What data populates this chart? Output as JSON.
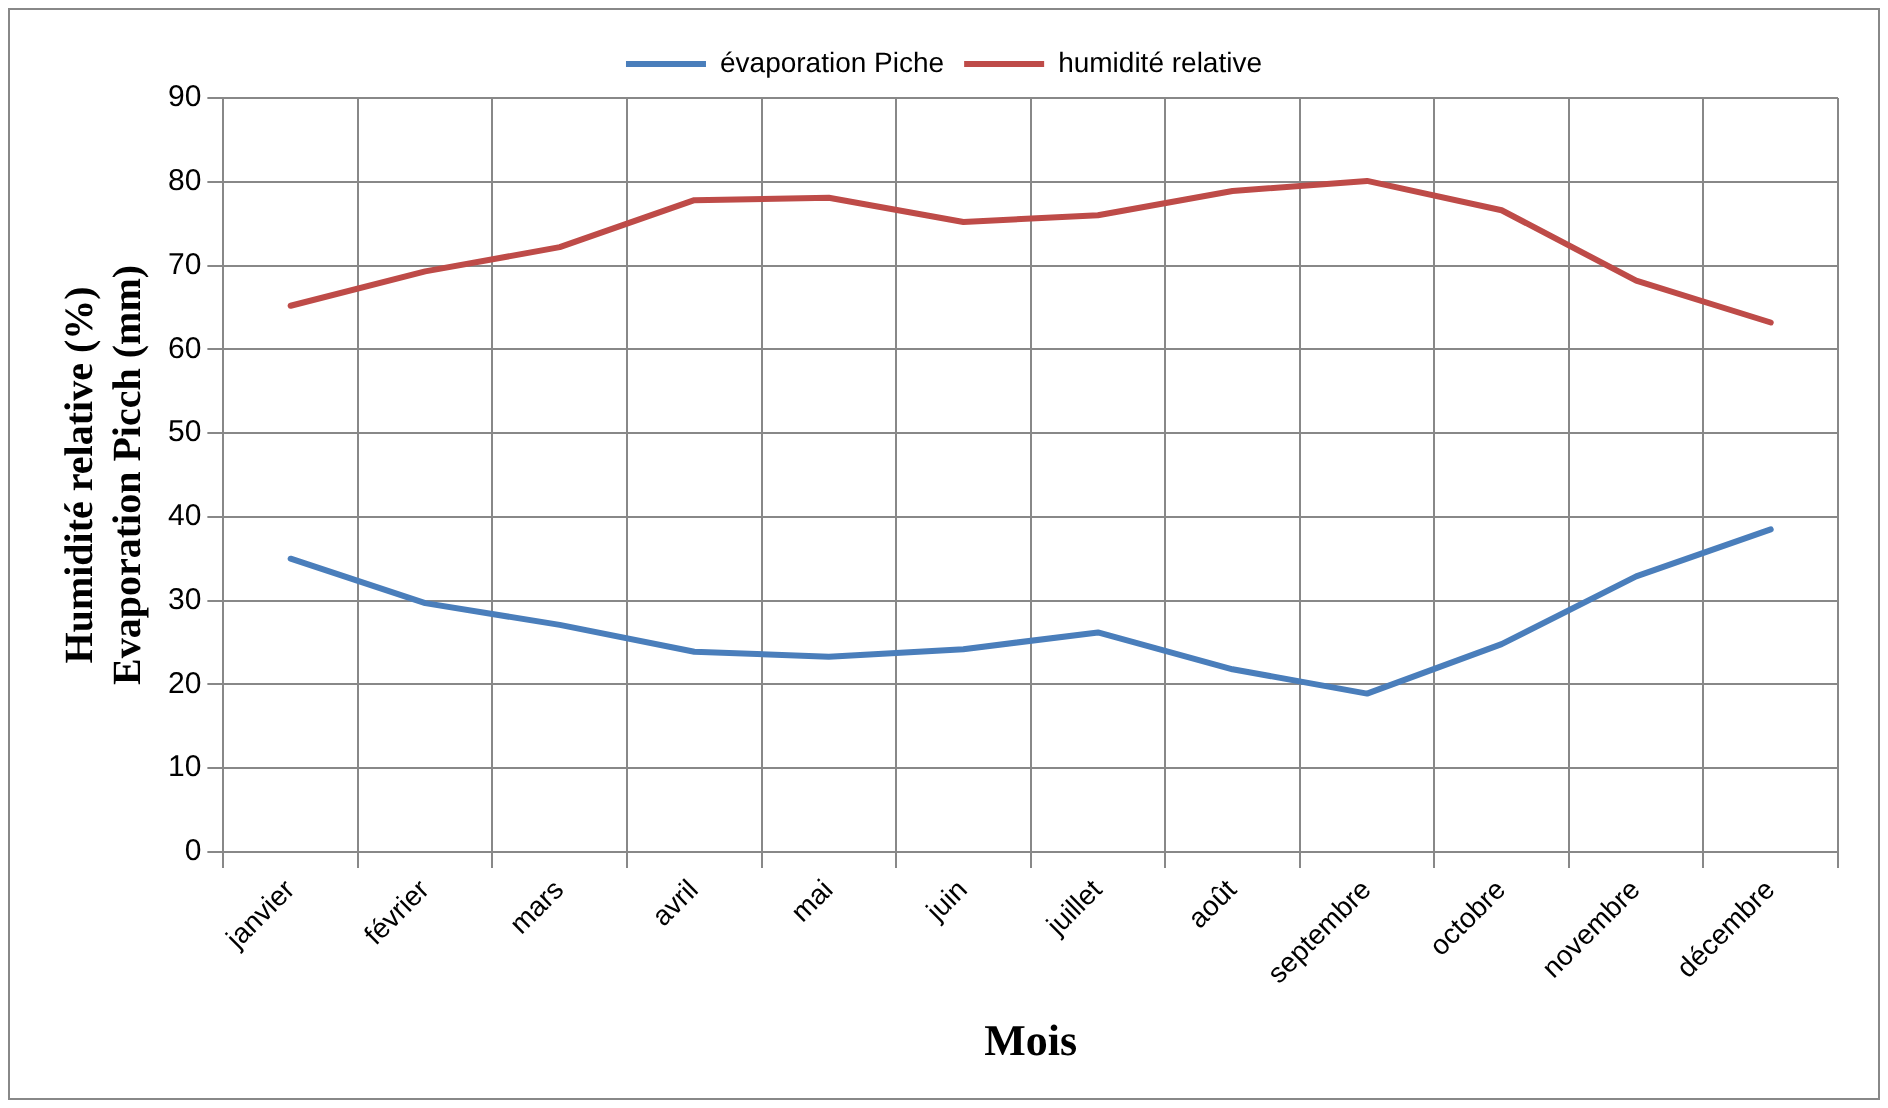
{
  "chart_data": {
    "type": "line",
    "xlabel": "Mois",
    "ylabel": "Humidité relative (%)\nEvaporation Picch (mm)",
    "categories": [
      "janvier",
      "février",
      "mars",
      "avril",
      "mai",
      "juin",
      "juillet",
      "août",
      "septembre",
      "octobre",
      "novembre",
      "décembre"
    ],
    "series": [
      {
        "name": "évaporation Piche",
        "color": "#4a7ebb",
        "values": [
          35,
          29.7,
          27.1,
          23.9,
          23.3,
          24.2,
          26.2,
          21.8,
          18.9,
          24.8,
          32.9,
          38.5
        ]
      },
      {
        "name": "humidité relative",
        "color": "#be4b48",
        "values": [
          65.2,
          69.3,
          72.2,
          77.8,
          78.1,
          75.2,
          76,
          78.9,
          80.1,
          76.6,
          68.2,
          63.2
        ]
      }
    ],
    "ylim": [
      0,
      90
    ],
    "yticks": [
      0,
      10,
      20,
      30,
      40,
      50,
      60,
      70,
      80,
      90
    ],
    "grid": true,
    "legend": "top",
    "marker": "none",
    "line_style": "solid"
  }
}
